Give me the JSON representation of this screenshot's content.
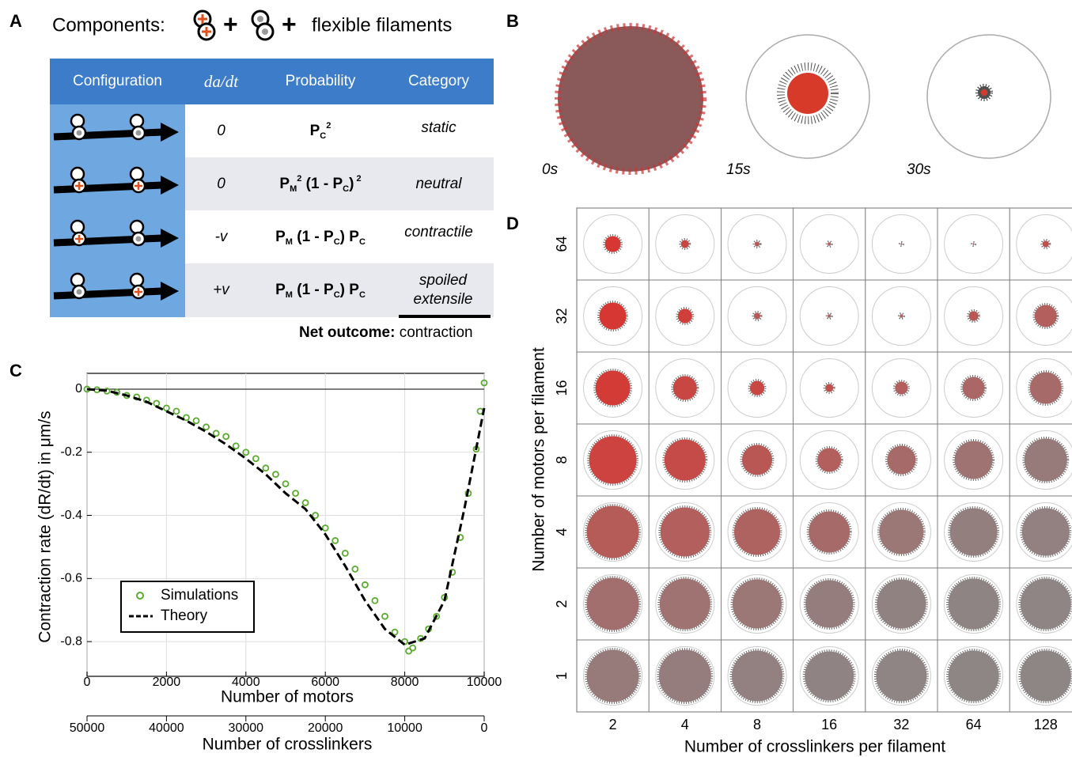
{
  "panel_labels": [
    "A",
    "B",
    "C",
    "D"
  ],
  "panel_a": {
    "components_label": "Components:",
    "plus": "+",
    "filaments": "flexible filaments",
    "table": {
      "header": [
        "Configuration",
        "da/dt",
        "Probability",
        "Category"
      ],
      "rows": [
        {
          "dadt": "0",
          "probability": [
            "P",
            "C",
            "2"
          ],
          "category": "static"
        },
        {
          "dadt": "0",
          "probability": [
            "P",
            "M",
            "2",
            " (1 - P",
            "C",
            ")",
            " 2"
          ],
          "category": "neutral"
        },
        {
          "dadt": "-v",
          "probability": [
            "P",
            "M",
            " (1 - P",
            "C",
            ") P",
            "C"
          ],
          "category": "contractile"
        },
        {
          "dadt": "+v",
          "probability": [
            "P",
            "M",
            " (1 - P",
            "C",
            ") P",
            "C"
          ],
          "category": "spoiled extensile"
        }
      ]
    },
    "net_outcome_label": "Net outcome:",
    "net_outcome": "contraction"
  },
  "panel_b": {
    "times": [
      "0s",
      "15s",
      "30s"
    ]
  },
  "chart_data": {
    "type": "scatter",
    "xlabel": "Number of motors",
    "ylabel": "Contraction rate (dR/dt) in μm/s",
    "xlim": [
      0,
      10000
    ],
    "xticks": [
      0,
      2000,
      4000,
      6000,
      8000,
      10000
    ],
    "ylim": [
      -0.91,
      0.05
    ],
    "yticks": [
      0,
      -0.2,
      -0.4,
      -0.6,
      -0.8
    ],
    "x2label": "Number of crosslinkers",
    "x2lim": [
      50000,
      0
    ],
    "x2ticks": [
      50000,
      40000,
      30000,
      20000,
      10000,
      0
    ],
    "grid": true,
    "legend": "lower left",
    "series": [
      {
        "name": "Simulations",
        "type": "scatter",
        "color": "#5aab2e",
        "x": [
          0,
          250,
          500,
          750,
          1000,
          1250,
          1500,
          1750,
          2000,
          2250,
          2500,
          2750,
          3000,
          3250,
          3500,
          3750,
          4000,
          4250,
          4500,
          4750,
          5000,
          5250,
          5500,
          5750,
          6000,
          6250,
          6500,
          6750,
          7000,
          7250,
          7500,
          7750,
          8000,
          8100,
          8200,
          8400,
          8600,
          8800,
          9000,
          9200,
          9400,
          9600,
          9800,
          9900,
          10000
        ],
        "values": [
          0,
          -0.002,
          -0.006,
          -0.01,
          -0.02,
          -0.025,
          -0.035,
          -0.045,
          -0.06,
          -0.07,
          -0.09,
          -0.1,
          -0.12,
          -0.14,
          -0.15,
          -0.18,
          -0.2,
          -0.22,
          -0.25,
          -0.27,
          -0.3,
          -0.33,
          -0.36,
          -0.4,
          -0.44,
          -0.48,
          -0.52,
          -0.57,
          -0.62,
          -0.67,
          -0.72,
          -0.77,
          -0.8,
          -0.83,
          -0.82,
          -0.79,
          -0.76,
          -0.72,
          -0.66,
          -0.58,
          -0.47,
          -0.33,
          -0.19,
          -0.07,
          0.02
        ]
      },
      {
        "name": "Theory",
        "type": "line",
        "color": "#000000",
        "dashed": true,
        "x": [
          0,
          500,
          1000,
          1500,
          2000,
          2500,
          3000,
          3500,
          4000,
          4500,
          5000,
          5500,
          6000,
          6500,
          7000,
          7500,
          8000,
          8500,
          9000,
          9500,
          10000
        ],
        "values": [
          0,
          -0.005,
          -0.02,
          -0.04,
          -0.07,
          -0.1,
          -0.135,
          -0.175,
          -0.22,
          -0.27,
          -0.33,
          -0.38,
          -0.46,
          -0.56,
          -0.67,
          -0.76,
          -0.81,
          -0.79,
          -0.67,
          -0.38,
          -0.06
        ]
      }
    ]
  },
  "panel_d": {
    "row_labels": [
      "64",
      "32",
      "16",
      "8",
      "4",
      "2",
      "1"
    ],
    "col_labels": [
      "2",
      "4",
      "8",
      "16",
      "32",
      "64",
      "128"
    ],
    "ylabel": "Number of motors per filament",
    "xlabel": "Number of crosslinkers per filament"
  }
}
